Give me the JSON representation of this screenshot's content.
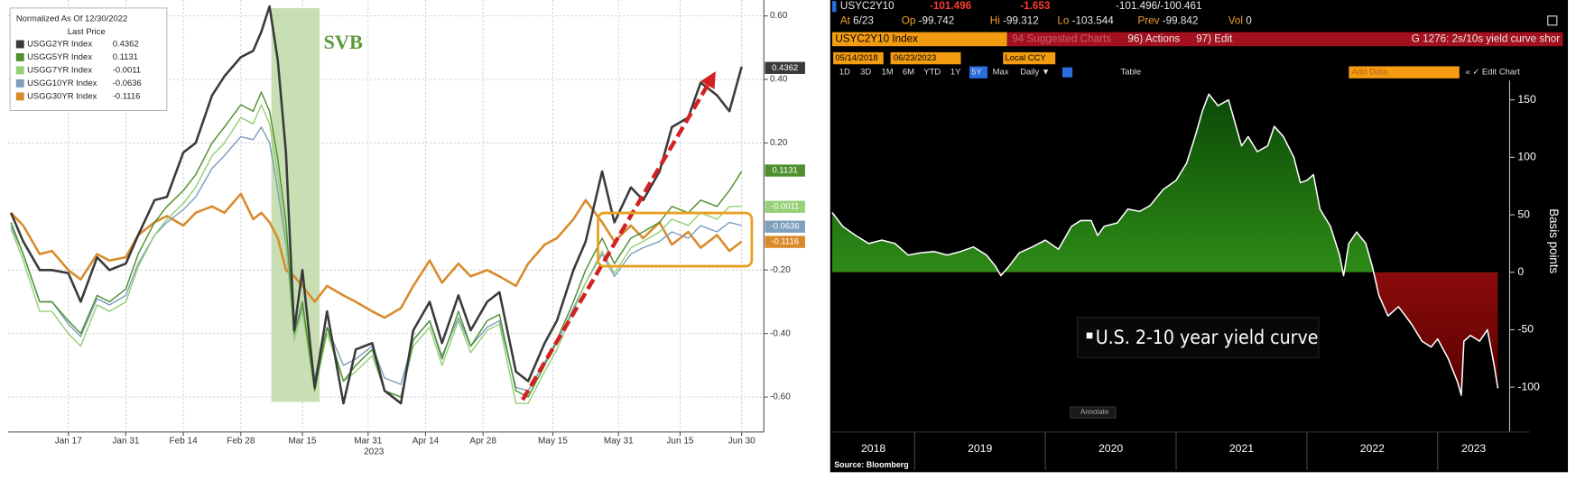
{
  "chart_data": [
    {
      "type": "line",
      "legend_title": "Normalized As Of 12/30/2022",
      "legend_subtitle": "Last Price",
      "annotation": "SVB",
      "x_sublabel": "2023",
      "grid": true,
      "xlim": [
        2.3,
        186.4
      ],
      "ylim": [
        -0.71,
        0.65
      ],
      "xticks": [
        {
          "value": 17,
          "label": "Jan 17"
        },
        {
          "value": 31,
          "label": "Jan 31"
        },
        {
          "value": 45,
          "label": "Feb 14"
        },
        {
          "value": 59,
          "label": "Feb 28"
        },
        {
          "value": 74,
          "label": "Mar 15"
        },
        {
          "value": 90,
          "label": "Mar 31"
        },
        {
          "value": 104,
          "label": "Apr 14"
        },
        {
          "value": 118,
          "label": "Apr 28"
        },
        {
          "value": 135,
          "label": "May 15"
        },
        {
          "value": 151,
          "label": "May 31"
        },
        {
          "value": 166,
          "label": "Jun 15"
        },
        {
          "value": 181,
          "label": "Jun 30"
        }
      ],
      "yticks": [
        {
          "value": 0.6,
          "label": "0.60"
        },
        {
          "value": 0.4,
          "label": "0.40"
        },
        {
          "value": 0.2,
          "label": "0.20"
        },
        {
          "value": -0.2,
          "label": "-0.20"
        },
        {
          "value": -0.4,
          "label": "-0.40"
        },
        {
          "value": -0.6,
          "label": "-0.60"
        }
      ],
      "x": [
        3,
        6,
        10,
        13,
        17,
        20,
        24,
        27,
        31,
        34,
        38,
        41,
        45,
        48,
        52,
        55,
        59,
        62,
        64,
        66,
        68,
        70,
        72,
        74,
        77,
        80,
        84,
        87,
        91,
        94,
        98,
        101,
        105,
        108,
        112,
        115,
        119,
        122,
        126,
        129,
        133,
        136,
        140,
        143,
        147,
        150,
        154,
        157,
        161,
        164,
        168,
        171,
        175,
        178,
        181
      ],
      "series": [
        {
          "name": "USGG2YR Index",
          "last_value": 0.4362,
          "color": "#3a3a3a",
          "values": [
            -0.02,
            -0.11,
            -0.2,
            -0.2,
            -0.21,
            -0.3,
            -0.16,
            -0.2,
            -0.18,
            -0.09,
            0.02,
            0.03,
            0.17,
            0.2,
            0.35,
            0.41,
            0.47,
            0.49,
            0.55,
            0.63,
            0.46,
            0.17,
            -0.39,
            -0.2,
            -0.57,
            -0.33,
            -0.62,
            -0.45,
            -0.43,
            -0.58,
            -0.62,
            -0.39,
            -0.3,
            -0.43,
            -0.28,
            -0.39,
            -0.3,
            -0.27,
            -0.52,
            -0.55,
            -0.43,
            -0.36,
            -0.2,
            -0.11,
            0.11,
            -0.05,
            0.06,
            0.02,
            0.11,
            0.25,
            0.28,
            0.39,
            0.35,
            0.3,
            0.44
          ]
        },
        {
          "name": "USGG5YR Index",
          "last_value": 0.1131,
          "color": "#4f8f2f",
          "values": [
            -0.05,
            -0.15,
            -0.3,
            -0.3,
            -0.36,
            -0.4,
            -0.28,
            -0.3,
            -0.26,
            -0.15,
            -0.05,
            0.0,
            0.05,
            0.1,
            0.2,
            0.25,
            0.32,
            0.3,
            0.36,
            0.3,
            0.15,
            -0.05,
            -0.4,
            -0.3,
            -0.58,
            -0.38,
            -0.55,
            -0.5,
            -0.45,
            -0.58,
            -0.6,
            -0.42,
            -0.36,
            -0.48,
            -0.33,
            -0.44,
            -0.36,
            -0.34,
            -0.58,
            -0.6,
            -0.5,
            -0.42,
            -0.3,
            -0.2,
            -0.1,
            -0.18,
            -0.1,
            -0.08,
            -0.05,
            0.0,
            -0.02,
            0.02,
            0.0,
            0.05,
            0.11
          ]
        },
        {
          "name": "USGG7YR Index",
          "last_value": -0.0011,
          "color": "#96d078",
          "values": [
            -0.07,
            -0.17,
            -0.33,
            -0.33,
            -0.4,
            -0.44,
            -0.31,
            -0.33,
            -0.3,
            -0.19,
            -0.09,
            -0.04,
            0.01,
            0.06,
            0.16,
            0.2,
            0.28,
            0.26,
            0.32,
            0.26,
            0.1,
            -0.1,
            -0.42,
            -0.33,
            -0.58,
            -0.4,
            -0.55,
            -0.52,
            -0.47,
            -0.58,
            -0.6,
            -0.44,
            -0.38,
            -0.5,
            -0.36,
            -0.46,
            -0.39,
            -0.37,
            -0.62,
            -0.62,
            -0.52,
            -0.45,
            -0.33,
            -0.24,
            -0.14,
            -0.21,
            -0.13,
            -0.11,
            -0.08,
            -0.04,
            -0.06,
            -0.02,
            -0.04,
            0.0,
            0.0
          ]
        },
        {
          "name": "USGG10YR Index",
          "last_value": -0.0636,
          "color": "#7f9fbf",
          "values": [
            -0.06,
            -0.15,
            -0.3,
            -0.3,
            -0.37,
            -0.41,
            -0.29,
            -0.31,
            -0.28,
            -0.18,
            -0.09,
            -0.05,
            -0.01,
            0.03,
            0.12,
            0.16,
            0.22,
            0.21,
            0.25,
            0.2,
            0.05,
            -0.12,
            -0.4,
            -0.32,
            -0.54,
            -0.38,
            -0.5,
            -0.48,
            -0.44,
            -0.54,
            -0.56,
            -0.42,
            -0.36,
            -0.47,
            -0.35,
            -0.44,
            -0.38,
            -0.36,
            -0.57,
            -0.58,
            -0.49,
            -0.43,
            -0.32,
            -0.24,
            -0.15,
            -0.22,
            -0.15,
            -0.13,
            -0.11,
            -0.08,
            -0.1,
            -0.06,
            -0.08,
            -0.05,
            -0.06
          ]
        },
        {
          "name": "USGG30YR Index",
          "last_value": -0.1116,
          "color": "#d98a2b",
          "values": [
            -0.02,
            -0.06,
            -0.15,
            -0.14,
            -0.2,
            -0.23,
            -0.15,
            -0.17,
            -0.16,
            -0.09,
            -0.05,
            -0.03,
            -0.06,
            -0.02,
            0.0,
            -0.02,
            0.04,
            -0.04,
            -0.02,
            -0.05,
            -0.1,
            -0.2,
            -0.22,
            -0.25,
            -0.3,
            -0.25,
            -0.28,
            -0.3,
            -0.33,
            -0.35,
            -0.32,
            -0.25,
            -0.17,
            -0.24,
            -0.18,
            -0.22,
            -0.2,
            -0.22,
            -0.25,
            -0.18,
            -0.12,
            -0.1,
            -0.04,
            0.02,
            -0.05,
            -0.11,
            -0.06,
            -0.1,
            -0.05,
            -0.12,
            -0.08,
            -0.13,
            -0.09,
            -0.14,
            -0.11
          ]
        }
      ]
    },
    {
      "type": "area",
      "ylabel": "Basis points",
      "annotation": "U.S. 2-10 year yield curve",
      "line_color": "#ffffff",
      "positive_color": "#2e8b17",
      "negative_color": "#8b0b0b",
      "xlim": [
        2018.37,
        2023.55
      ],
      "ylim": [
        -139,
        167
      ],
      "xticks": [
        2018,
        2019,
        2020,
        2021,
        2022,
        2023
      ],
      "yticks": [
        150,
        100,
        50,
        0,
        -50,
        -100
      ],
      "x": [
        2018.37,
        2018.45,
        2018.55,
        2018.65,
        2018.75,
        2018.85,
        2018.95,
        2019.05,
        2019.15,
        2019.25,
        2019.35,
        2019.45,
        2019.55,
        2019.62,
        2019.66,
        2019.72,
        2019.8,
        2019.9,
        2020.0,
        2020.1,
        2020.2,
        2020.27,
        2020.35,
        2020.4,
        2020.45,
        2020.55,
        2020.63,
        2020.72,
        2020.8,
        2020.9,
        2021.0,
        2021.08,
        2021.15,
        2021.2,
        2021.25,
        2021.32,
        2021.4,
        2021.45,
        2021.5,
        2021.55,
        2021.62,
        2021.7,
        2021.75,
        2021.82,
        2021.9,
        2021.95,
        2022.0,
        2022.05,
        2022.1,
        2022.18,
        2022.25,
        2022.28,
        2022.32,
        2022.38,
        2022.45,
        2022.5,
        2022.55,
        2022.62,
        2022.7,
        2022.8,
        2022.88,
        2022.95,
        2023.0,
        2023.08,
        2023.15,
        2023.18,
        2023.2,
        2023.25,
        2023.32,
        2023.38,
        2023.43,
        2023.46
      ],
      "values": [
        52,
        40,
        32,
        25,
        28,
        25,
        15,
        17,
        18,
        15,
        18,
        22,
        15,
        5,
        -3,
        5,
        17,
        22,
        28,
        20,
        40,
        45,
        45,
        32,
        40,
        43,
        55,
        53,
        58,
        72,
        80,
        95,
        120,
        140,
        155,
        145,
        150,
        130,
        110,
        118,
        105,
        110,
        127,
        118,
        100,
        78,
        80,
        85,
        55,
        40,
        15,
        -3,
        25,
        35,
        25,
        5,
        -20,
        -38,
        -30,
        -45,
        -60,
        -65,
        -58,
        -75,
        -95,
        -107,
        -60,
        -55,
        -60,
        -50,
        -80,
        -101
      ],
      "terminal": {
        "ticker": "USYC2Y10",
        "last": -101.496,
        "change": -1.653,
        "range": "-101.496/-100.461",
        "quote": [
          {
            "label": "At",
            "value": "6/23"
          },
          {
            "label": "Op",
            "value": -99.742
          },
          {
            "label": "Hi",
            "value": -99.312
          },
          {
            "label": "Lo",
            "value": -103.544
          },
          {
            "label": "Prev",
            "value": -99.842
          },
          {
            "label": "Vol",
            "value": 0
          }
        ],
        "security": "USYC2Y10 Index",
        "suggested": "94 Suggested Charts",
        "actions": "96) Actions",
        "edit": "97) Edit",
        "chart_name": "G 1276: 2s/10s yield curve shor",
        "start_date": "05/14/2018",
        "end_date": "06/23/2023",
        "currency": "Local CCY",
        "periods": [
          "1D",
          "3D",
          "1M",
          "6M",
          "YTD",
          "1Y",
          "5Y",
          "Max"
        ],
        "selected_period": 6,
        "frequency": "Daily ▼",
        "table": "Table",
        "add_data": "Add Data",
        "edit_chart": "« ✓ Edit Chart",
        "annotate": "Annotate",
        "source": "Source: Bloomberg"
      }
    }
  ]
}
